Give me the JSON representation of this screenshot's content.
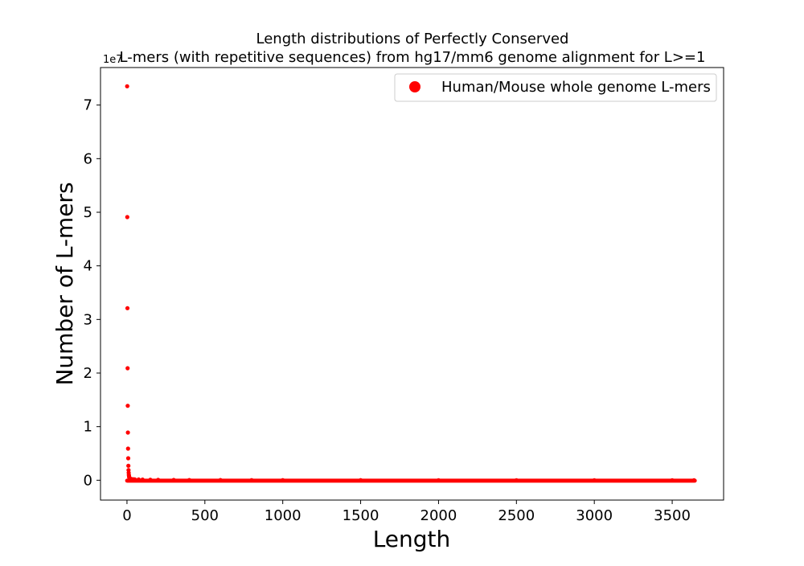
{
  "chart_data": {
    "type": "scatter",
    "title_line1": "Length distributions of Perfectly Conserved",
    "title_line2": "L-mers (with repetitive sequences) from hg17/mm6 genome alignment for L>=1",
    "xlabel": "Length",
    "ylabel": "Number of L-mers",
    "y_offset_label": "1e7",
    "xlim": [
      -170,
      3830
    ],
    "ylim": [
      -0.37,
      7.7
    ],
    "y_unit_multiplier": 10000000,
    "x_ticks": [
      0,
      500,
      1000,
      1500,
      2000,
      2500,
      3000,
      3500
    ],
    "x_tick_labels": [
      "0",
      "500",
      "1000",
      "1500",
      "2000",
      "2500",
      "3000",
      "3500"
    ],
    "y_ticks": [
      0,
      1,
      2,
      3,
      4,
      5,
      6,
      7
    ],
    "y_tick_labels": [
      "0",
      "1",
      "2",
      "3",
      "4",
      "5",
      "6",
      "7"
    ],
    "grid": false,
    "legend_position": "top-right",
    "series": [
      {
        "name": "Human/Mouse whole genome L-mers",
        "color": "#ff0000",
        "marker": "circle",
        "points": [
          [
            1,
            7.35
          ],
          [
            2,
            4.91
          ],
          [
            3,
            3.21
          ],
          [
            4,
            2.09
          ],
          [
            5,
            1.39
          ],
          [
            6,
            0.89
          ],
          [
            7,
            0.59
          ],
          [
            8,
            0.41
          ],
          [
            9,
            0.27
          ],
          [
            10,
            0.19
          ],
          [
            11,
            0.14
          ],
          [
            12,
            0.1
          ],
          [
            13,
            0.08
          ],
          [
            14,
            0.06
          ],
          [
            15,
            0.05
          ],
          [
            17,
            0.04
          ],
          [
            20,
            0.03
          ],
          [
            25,
            0.025
          ],
          [
            30,
            0.02
          ],
          [
            40,
            0.018
          ],
          [
            50,
            0.016
          ],
          [
            75,
            0.014
          ],
          [
            100,
            0.012
          ],
          [
            150,
            0.01
          ],
          [
            200,
            0.008
          ],
          [
            300,
            0.006
          ],
          [
            400,
            0.004
          ],
          [
            600,
            0.003
          ],
          [
            800,
            0.002
          ],
          [
            1000,
            0.0015
          ],
          [
            1500,
            0.001
          ],
          [
            2000,
            0.0005
          ],
          [
            2500,
            0.0003
          ],
          [
            3000,
            0.0002
          ],
          [
            3500,
            0.0001
          ],
          [
            3640,
            0.0001
          ]
        ]
      }
    ]
  }
}
